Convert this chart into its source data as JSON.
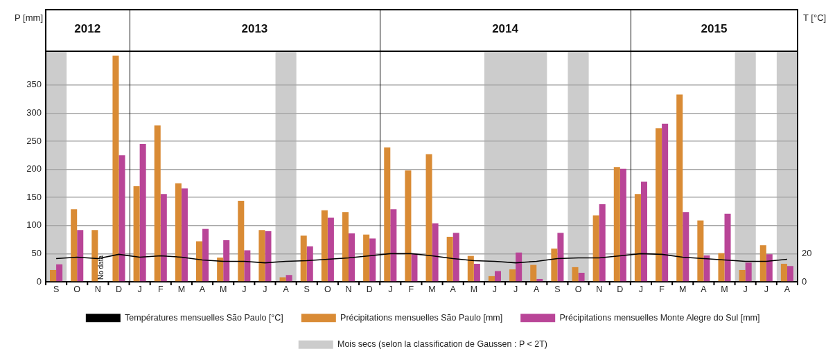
{
  "chart_data": {
    "type": "bar",
    "categories": [
      "S",
      "O",
      "N",
      "D",
      "J",
      "F",
      "M",
      "A",
      "M",
      "J",
      "J",
      "A",
      "S",
      "O",
      "N",
      "D",
      "J",
      "F",
      "M",
      "A",
      "M",
      "J",
      "J",
      "A",
      "S",
      "O",
      "N",
      "D",
      "J",
      "F",
      "M",
      "A",
      "M",
      "J",
      "J",
      "A"
    ],
    "series": [
      {
        "name": "Précipitations mensuelles São Paulo [mm]",
        "color": "#d98b35",
        "values": [
          21,
          129,
          92,
          402,
          170,
          278,
          175,
          72,
          43,
          144,
          92,
          8,
          82,
          127,
          124,
          84,
          239,
          198,
          227,
          80,
          46,
          10,
          22,
          30,
          59,
          26,
          118,
          204,
          156,
          273,
          333,
          109,
          51,
          21,
          65,
          32
        ]
      },
      {
        "name": "Précipitations mensuelles Monte Alegre do Sul [mm]",
        "color": "#b94597",
        "values": [
          31,
          92,
          null,
          225,
          245,
          156,
          166,
          94,
          74,
          56,
          90,
          12,
          63,
          114,
          86,
          77,
          129,
          50,
          104,
          87,
          32,
          19,
          52,
          5,
          87,
          16,
          138,
          201,
          178,
          281,
          124,
          47,
          121,
          34,
          49,
          28
        ]
      },
      {
        "name": "Températures mensuelles São Paulo [°C]",
        "type": "line",
        "axis": "y2",
        "color": "#000000",
        "values": [
          16.5,
          17.5,
          16.5,
          19.5,
          17.5,
          18.5,
          17.5,
          15.5,
          14.5,
          14.5,
          13.5,
          14.5,
          15,
          16,
          17,
          18.5,
          20,
          20,
          18.5,
          16.5,
          15,
          14.5,
          13.5,
          14.5,
          16.5,
          17,
          17,
          18.5,
          20,
          19.5,
          17.5,
          16.5,
          15.5,
          14.5,
          14.5,
          16
        ]
      }
    ],
    "x2lim": [
      "2012-09-01",
      "2015-09-01"
    ],
    "x2ticks": [
      {
        "value": "2012-11-01",
        "label": "2012"
      },
      {
        "value": "2013-01-01",
        "label": null
      },
      {
        "value": "2013-07-01",
        "label": "2013"
      },
      {
        "value": "2014-01-01",
        "label": null
      },
      {
        "value": "2014-07-01",
        "label": "2014"
      },
      {
        "value": "2015-01-01",
        "label": null
      },
      {
        "value": "2015-05-01",
        "label": "2015"
      }
    ],
    "ylim": [
      0,
      410
    ],
    "yticks": [
      0,
      50,
      100,
      150,
      200,
      250,
      300,
      350
    ],
    "y2lim": [
      0,
      164
    ],
    "y2ticks": [
      0,
      20
    ],
    "ylabel": "P [mm]",
    "y2label": "T [°C]",
    "bands": [
      {
        "axis": "x2",
        "from": "2012-09-01",
        "to": "2012-10-01",
        "color": "#cccccc",
        "label": "Mois secs (selon la classification de Gaussen : P < 2T)"
      },
      {
        "axis": "x2",
        "from": "2013-08-01",
        "to": "2013-09-01",
        "color": "#cccccc"
      },
      {
        "axis": "x2",
        "from": "2014-06-01",
        "to": "2014-09-01",
        "color": "#cccccc"
      },
      {
        "axis": "x2",
        "from": "2014-10-01",
        "to": "2014-11-01",
        "color": "#cccccc"
      },
      {
        "axis": "x2",
        "from": "2015-06-01",
        "to": "2015-07-01",
        "color": "#cccccc"
      },
      {
        "axis": "x2",
        "from": "2015-08-01",
        "to": "2015-09-01",
        "color": "#cccccc"
      }
    ],
    "annotations": [
      {
        "text": "No data",
        "x": "N",
        "y": 0
      }
    ],
    "grid": true,
    "legend": "bottom",
    "marker": "none",
    "line_style": "solid"
  }
}
